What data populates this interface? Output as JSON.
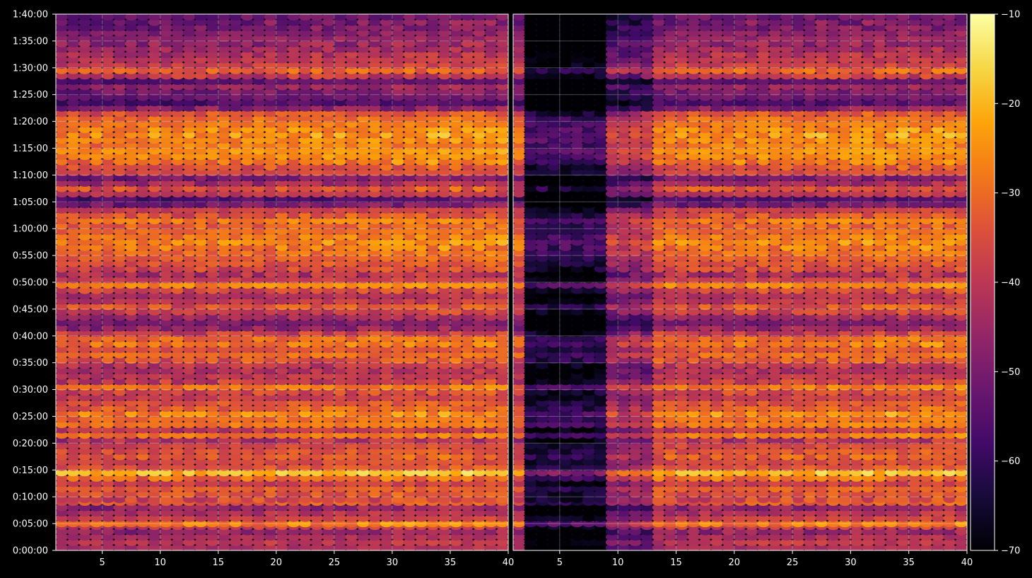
{
  "chart_data": {
    "type": "heatmap",
    "colormap": "inferno",
    "background": "#000000",
    "grid": true,
    "panels": [
      {
        "xlim": [
          1,
          40
        ],
        "xticks": [
          5,
          10,
          15,
          20,
          25,
          30,
          35,
          40
        ],
        "shows_y_axis": true
      },
      {
        "xlim": [
          1,
          40
        ],
        "xticks": [
          5,
          10,
          15,
          20,
          25,
          30,
          35,
          40
        ],
        "shows_y_axis": false
      }
    ],
    "y_axis": {
      "format": "H:MM:SS",
      "ylim_seconds": [
        0,
        6000
      ],
      "tick_labels": [
        "0:00:00",
        "0:05:00",
        "0:10:00",
        "0:15:00",
        "0:20:00",
        "0:25:00",
        "0:30:00",
        "0:35:00",
        "0:40:00",
        "0:45:00",
        "0:50:00",
        "0:55:00",
        "1:00:00",
        "1:05:00",
        "1:10:00",
        "1:15:00",
        "1:20:00",
        "1:25:00",
        "1:30:00",
        "1:35:00",
        "1:40:00"
      ]
    },
    "colorbar": {
      "range": [
        -70,
        -10
      ],
      "ticks": [
        -70,
        -60,
        -50,
        -40,
        -30,
        -20,
        -10
      ],
      "tick_labels": [
        "−70",
        "−60",
        "−50",
        "−40",
        "−30",
        "−20",
        "−10"
      ]
    },
    "x_channels": 39,
    "row_times_minutes": [
      0.5,
      1.5,
      2.5,
      3.5,
      4.5,
      5,
      6,
      7,
      8,
      9,
      9.5,
      10.5,
      11.5,
      12.5,
      13.5,
      14.5,
      15.5,
      16.5,
      17.5,
      18.5,
      19.5,
      20.5,
      21.5,
      22.5,
      23.5,
      24.5,
      25.5,
      26.5,
      27.5,
      28.5,
      29.5,
      30.5,
      31.5,
      32.5,
      33.5,
      34.5,
      35.5,
      36.5,
      37.5,
      38.5,
      39.5,
      40.5,
      41.5,
      42.5,
      43.5,
      44.5,
      45.5,
      46.5,
      47.5,
      48.5,
      49.5,
      50.5,
      51.5,
      52.5,
      53.5,
      54.5,
      55.5,
      56.5,
      57.5,
      58.5,
      59.5,
      60.5,
      61.5,
      62.5,
      63.5,
      64.5,
      65.5,
      66.5,
      67.5,
      68.5,
      69.5,
      70.5,
      71.5,
      72.5,
      73.5,
      74.5,
      75.5,
      76.5,
      77.5,
      78.5,
      79.5,
      80.5,
      81.5,
      82.5,
      83.5,
      84.5,
      85.5,
      86.5,
      87.5,
      88.5,
      89.5,
      90.5,
      91.5,
      92.5,
      93.5,
      94.5,
      95.5,
      96.5,
      97.5,
      98.5,
      99.5
    ],
    "row_levels_db": [
      -45,
      -42,
      -45,
      -48,
      -40,
      -30,
      -40,
      -44,
      -48,
      -34,
      -38,
      -36,
      -34,
      -40,
      -32,
      -22,
      -36,
      -38,
      -34,
      -36,
      -38,
      -44,
      -30,
      -42,
      -30,
      -32,
      -28,
      -34,
      -36,
      -40,
      -38,
      -30,
      -40,
      -42,
      -44,
      -42,
      -36,
      -32,
      -36,
      -30,
      -32,
      -40,
      -48,
      -52,
      -46,
      -40,
      -36,
      -42,
      -44,
      -38,
      -28,
      -40,
      -44,
      -38,
      -36,
      -34,
      -32,
      -30,
      -28,
      -30,
      -32,
      -34,
      -30,
      -36,
      -40,
      -52,
      -58,
      -42,
      -36,
      -46,
      -52,
      -38,
      -36,
      -30,
      -28,
      -26,
      -30,
      -28,
      -26,
      -28,
      -30,
      -32,
      -36,
      -50,
      -58,
      -54,
      -52,
      -48,
      -56,
      -42,
      -34,
      -40,
      -42,
      -44,
      -46,
      -48,
      -48,
      -50,
      -52,
      -52,
      -54
    ],
    "row_jitter": [
      3,
      4,
      3,
      5,
      4,
      6,
      3,
      4,
      5,
      4,
      6,
      5,
      3,
      4,
      6,
      5,
      4,
      3,
      5,
      4,
      3,
      6,
      4,
      5,
      3,
      4,
      6,
      5,
      4,
      3,
      5,
      4,
      6,
      3,
      4,
      5,
      6,
      4,
      3,
      5,
      4,
      6,
      5,
      3,
      4,
      5,
      6,
      4,
      3,
      5,
      4,
      3,
      6,
      5,
      4,
      3,
      4,
      6,
      5,
      4,
      3,
      5,
      4,
      6,
      3,
      5,
      4,
      3,
      6,
      5,
      4,
      3,
      5,
      6,
      4,
      3,
      5,
      4,
      6,
      5,
      3,
      4,
      5,
      6,
      4,
      3,
      5,
      4,
      3,
      6,
      5,
      4,
      3,
      5,
      4,
      6,
      3,
      4,
      5,
      6,
      4
    ]
  }
}
